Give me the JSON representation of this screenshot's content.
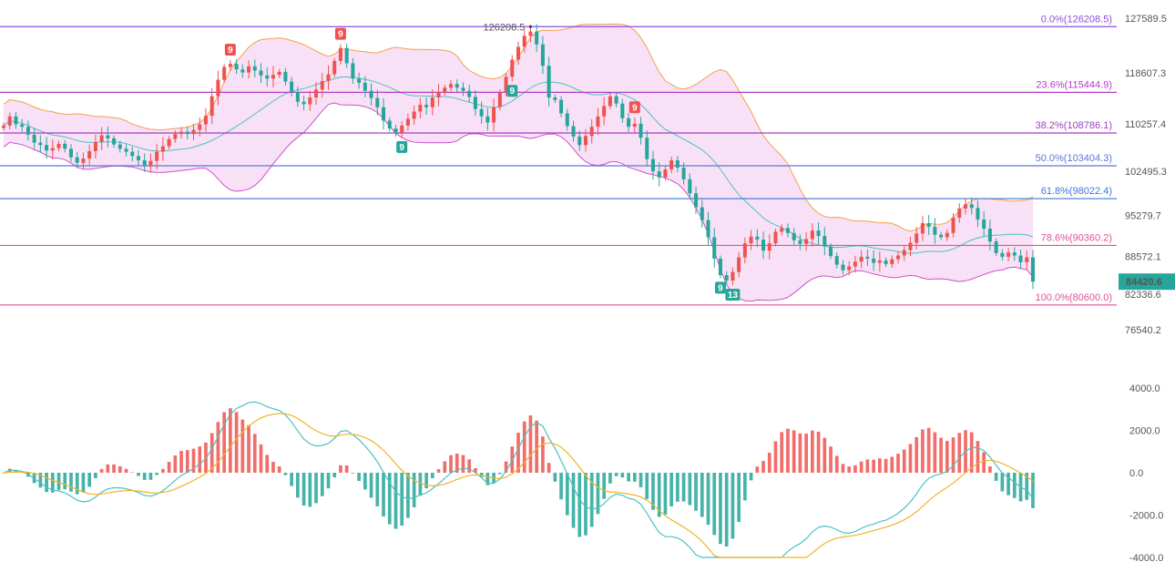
{
  "chart_data": [
    {
      "type": "candlestick",
      "ylim": [
        76540.2,
        127589.5
      ],
      "y_ticks": [
        "127589.5",
        "118607.3",
        "110257.4",
        "102495.3",
        "95279.7",
        "88572.1",
        "82336.6",
        "76540.2"
      ],
      "fib_levels": [
        {
          "label": "0.0%(126208.5)",
          "value": 126208.5,
          "color": "#8a4fe0"
        },
        {
          "label": "23.6%(115444.9)",
          "value": 115444.9,
          "color": "#b43cc8"
        },
        {
          "label": "38.2%(108786.1)",
          "value": 108786.1,
          "color": "#a040c0"
        },
        {
          "label": "50.0%(103404.3)",
          "value": 103404.3,
          "color": "#5a78d8"
        },
        {
          "label": "61.8%(98022.4)",
          "value": 98022.4,
          "color": "#3c78d8"
        },
        {
          "label": "78.6%(90360.2)",
          "value": 90360.2,
          "color": "#e0509a"
        },
        {
          "label": "100.0%(80600.0)",
          "value": 80600.0,
          "color": "#e0509a"
        }
      ],
      "high_label": "126208.5",
      "current_price": "84420.6",
      "current_price_color": "#26a69a",
      "up_color": "#ef5350",
      "down_color": "#26a69a",
      "band_fill": "#f7dcf5",
      "band_upper_color": "#f5a04a",
      "band_middle_color": "#4cc2c0",
      "band_lower_color": "#d050c8",
      "close": [
        110000,
        111500,
        110200,
        109800,
        108500,
        107200,
        106800,
        105900,
        106300,
        107000,
        106200,
        104800,
        103900,
        104600,
        105800,
        107300,
        108400,
        107900,
        106900,
        106200,
        105700,
        105000,
        104300,
        103500,
        104200,
        105700,
        106600,
        107800,
        108600,
        109000,
        108600,
        109300,
        110200,
        111600,
        114800,
        117500,
        119600,
        120100,
        119200,
        118700,
        119700,
        119000,
        118200,
        117700,
        118300,
        118800,
        117200,
        115500,
        113900,
        113500,
        114600,
        115900,
        117300,
        118400,
        120600,
        122700,
        120200,
        117700,
        117000,
        115700,
        114500,
        113000,
        110800,
        109500,
        108800,
        110000,
        111100,
        112300,
        113400,
        113000,
        114600,
        115400,
        116200,
        116800,
        116200,
        115700,
        114700,
        112700,
        111500,
        110500,
        113000,
        115400,
        118000,
        120800,
        122900,
        124700,
        125400,
        123300,
        119800,
        114600,
        114200,
        112000,
        109900,
        108200,
        106800,
        108300,
        109800,
        111500,
        113200,
        114800,
        113600,
        111200,
        109800,
        110300,
        108000,
        104500,
        102500,
        101500,
        102800,
        104300,
        103100,
        101200,
        98900,
        96600,
        94500,
        91700,
        88200,
        85500,
        84600,
        86000,
        88400,
        90700,
        91800,
        91300,
        89500,
        90700,
        92600,
        93200,
        92400,
        91200,
        90600,
        91400,
        92800,
        91900,
        90200,
        88600,
        87200,
        86300,
        86900,
        87700,
        88500,
        88200,
        87500,
        87900,
        87300,
        88100,
        88700,
        89600,
        90800,
        92300,
        94000,
        93400,
        92100,
        91700,
        92400,
        94900,
        96400,
        97100,
        96500,
        94600,
        93100,
        91000,
        89100,
        88500,
        89200,
        88700,
        87600,
        88400,
        84420.6
      ],
      "macd_ylim": [
        -4000,
        4000
      ],
      "macd_ticks": [
        "4000.0",
        "2000.0",
        "0.0",
        "-2000.0",
        "-4000.0"
      ],
      "macd_up_color": "#ef5350",
      "macd_down_color": "#26a69a",
      "dif_color": "#4cc2c0",
      "dea_color": "#f0b429",
      "markers": [
        {
          "index": 37,
          "label": "9",
          "kind": "sell"
        },
        {
          "index": 55,
          "label": "9",
          "kind": "sell"
        },
        {
          "index": 103,
          "label": "9",
          "kind": "sell"
        },
        {
          "index": 65,
          "label": "9",
          "kind": "buy"
        },
        {
          "index": 83,
          "label": "9",
          "kind": "buy"
        },
        {
          "index": 117,
          "label": "9",
          "kind": "buy"
        },
        {
          "index": 119,
          "label": "13",
          "kind": "buy"
        }
      ]
    }
  ]
}
